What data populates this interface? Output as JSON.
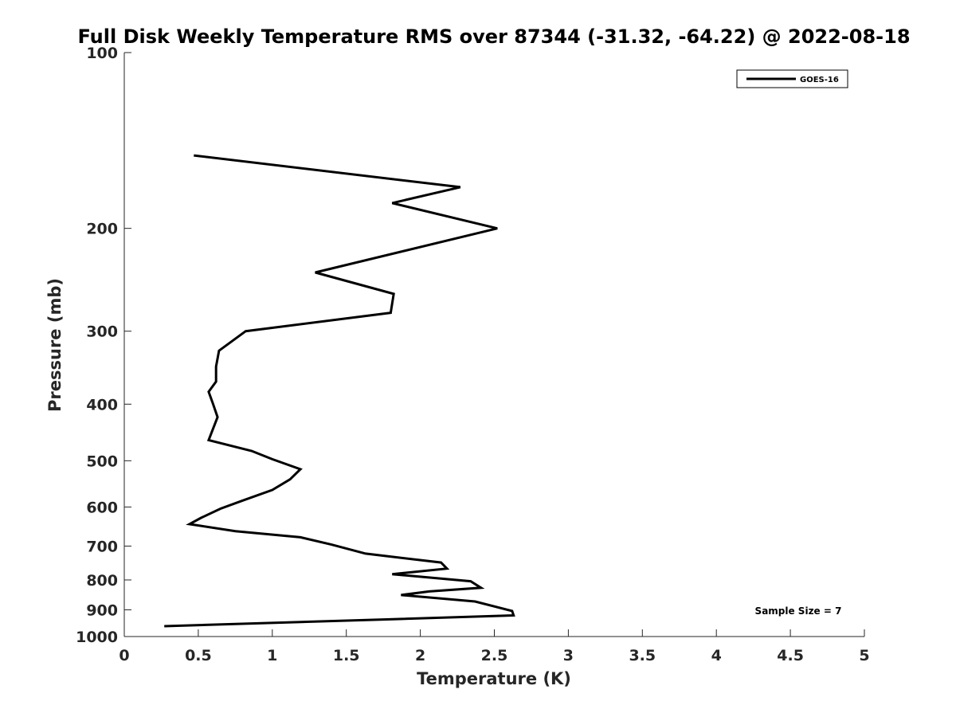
{
  "chart_data": {
    "type": "line",
    "title": "Full Disk Weekly Temperature RMS over 87344 (-31.32, -64.22) @ 2022-08-18",
    "xlabel": "Temperature (K)",
    "ylabel": "Pressure (mb)",
    "xlim": [
      0,
      5
    ],
    "ylim": [
      100,
      1000
    ],
    "yscale": "log",
    "y_reversed": true,
    "grid": false,
    "legend_placement": "top-right",
    "x_ticks": [
      0,
      0.5,
      1,
      1.5,
      2,
      2.5,
      3,
      3.5,
      4,
      4.5,
      5
    ],
    "x_tick_labels": [
      "0",
      "0.5",
      "1",
      "1.5",
      "2",
      "2.5",
      "3",
      "3.5",
      "4",
      "4.5",
      "5"
    ],
    "y_ticks": [
      100,
      200,
      300,
      400,
      500,
      600,
      700,
      800,
      900,
      1000
    ],
    "y_tick_labels": [
      "100",
      "200",
      "300",
      "400",
      "500",
      "600",
      "700",
      "800",
      "900",
      "1000"
    ],
    "series": [
      {
        "name": "GOES-16",
        "color": "#000000",
        "points": [
          [
            0.47,
            150
          ],
          [
            2.27,
            170
          ],
          [
            1.81,
            181
          ],
          [
            2.52,
            200
          ],
          [
            1.29,
            238
          ],
          [
            1.82,
            259
          ],
          [
            1.8,
            279
          ],
          [
            0.82,
            300
          ],
          [
            0.64,
            324
          ],
          [
            0.62,
            345
          ],
          [
            0.62,
            366
          ],
          [
            0.57,
            381
          ],
          [
            0.6,
            400
          ],
          [
            0.63,
            421
          ],
          [
            0.57,
            461
          ],
          [
            0.86,
            481
          ],
          [
            1.0,
            497
          ],
          [
            1.19,
            517
          ],
          [
            1.12,
            538
          ],
          [
            1.0,
            561
          ],
          [
            0.8,
            585
          ],
          [
            0.65,
            604
          ],
          [
            0.52,
            626
          ],
          [
            0.44,
            642
          ],
          [
            0.75,
            660
          ],
          [
            1.19,
            676
          ],
          [
            1.4,
            696
          ],
          [
            1.63,
            721
          ],
          [
            2.14,
            747
          ],
          [
            2.18,
            765
          ],
          [
            1.81,
            782
          ],
          [
            2.34,
            804
          ],
          [
            2.41,
            825
          ],
          [
            2.06,
            837
          ],
          [
            1.87,
            849
          ],
          [
            2.37,
            871
          ],
          [
            2.62,
            904
          ],
          [
            2.63,
            920
          ],
          [
            1.75,
            935
          ],
          [
            0.27,
            960
          ]
        ]
      }
    ],
    "annotation": "Sample Size = 7"
  }
}
